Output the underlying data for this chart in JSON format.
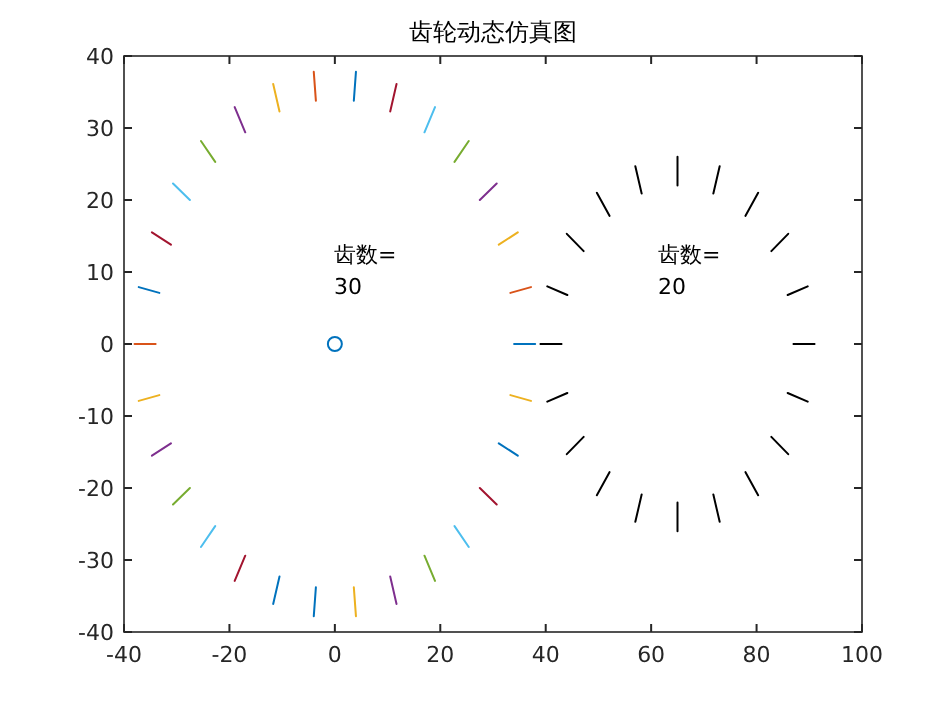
{
  "chart_data": {
    "type": "line",
    "title": "齿轮动态仿真图",
    "xlim": [
      -40,
      100
    ],
    "ylim": [
      -40,
      40
    ],
    "xticks": [
      -40,
      -20,
      0,
      20,
      40,
      60,
      80,
      100
    ],
    "yticks": [
      -40,
      -30,
      -20,
      -10,
      0,
      10,
      20,
      30,
      40
    ],
    "annotations": [
      "齿数=",
      "30",
      "齿数=",
      "20"
    ],
    "series": [
      {
        "color": "#0072bd",
        "x": [
          34,
          38,
          null,
          3.6,
          4,
          null,
          -33.3,
          -37.2,
          null,
          -10.5,
          -11.7,
          null,
          -3.6,
          -4,
          null,
          31.1,
          34.7
        ],
        "values": [
          0,
          0,
          null,
          33.8,
          37.8,
          null,
          7.1,
          7.9,
          null,
          -32.3,
          -36.1,
          null,
          -33.8,
          -37.8,
          null,
          -13.8,
          -15.5
        ]
      },
      {
        "color": "#d95319",
        "x": [
          33.3,
          37.2,
          null,
          -3.6,
          -4,
          null,
          -34,
          -38
        ],
        "values": [
          7.1,
          7.9,
          null,
          33.8,
          37.8,
          null,
          0,
          0
        ]
      },
      {
        "color": "#edb120",
        "x": [
          31.1,
          34.7,
          null,
          -10.5,
          -11.7,
          null,
          -33.3,
          -37.2,
          null,
          3.6,
          4,
          null,
          33.3,
          37.2
        ],
        "values": [
          13.8,
          15.5,
          null,
          32.3,
          36.1,
          null,
          -7.1,
          -7.9,
          null,
          -33.8,
          -37.8,
          null,
          -7.1,
          -7.9
        ]
      },
      {
        "color": "#7e2f8e",
        "x": [
          27.5,
          30.7,
          null,
          -17,
          -19,
          null,
          -31.1,
          -34.7,
          null,
          10.5,
          11.7
        ],
        "values": [
          20,
          22.3,
          null,
          29.4,
          32.9,
          null,
          -13.8,
          -15.5,
          null,
          -32.3,
          -36.1
        ]
      },
      {
        "color": "#77ac30",
        "x": [
          22.7,
          25.4,
          null,
          -22.7,
          -25.4,
          null,
          -27.5,
          -30.7,
          null,
          17,
          19
        ],
        "values": [
          25.3,
          28.2,
          null,
          25.3,
          28.2,
          null,
          -20,
          -22.3,
          null,
          -29.4,
          -32.9
        ]
      },
      {
        "color": "#4dbeee",
        "x": [
          17,
          19,
          null,
          -27.5,
          -30.7,
          null,
          -22.7,
          -25.4,
          null,
          22.7,
          25.4
        ],
        "values": [
          29.4,
          32.9,
          null,
          20,
          22.3,
          null,
          -25.3,
          -28.2,
          null,
          -25.3,
          -28.2
        ]
      },
      {
        "color": "#a2142f",
        "x": [
          10.5,
          11.7,
          null,
          -31.1,
          -34.7,
          null,
          -17,
          -19,
          null,
          27.5,
          30.7
        ],
        "values": [
          32.3,
          36.1,
          null,
          13.8,
          15.5,
          null,
          -29.4,
          -32.9,
          null,
          -20,
          -22.3
        ]
      },
      {
        "color": "#000000",
        "x": [
          87,
          91,
          null,
          85.9,
          89.7,
          null,
          82.8,
          86,
          null,
          77.9,
          80.3,
          null,
          71.8,
          73,
          null,
          65,
          65,
          null,
          58.2,
          57,
          null,
          52.1,
          49.7,
          null,
          47.2,
          44,
          null,
          44.1,
          40.3,
          null,
          43,
          39
        ],
        "values": [
          0,
          0,
          null,
          6.8,
          8,
          null,
          12.9,
          15.3,
          null,
          17.8,
          21,
          null,
          20.9,
          24.7,
          null,
          22,
          26,
          null,
          20.9,
          24.7,
          null,
          17.8,
          21,
          null,
          12.9,
          15.3,
          null,
          6.8,
          8,
          null,
          0,
          0
        ]
      },
      {
        "color": "#000000",
        "x": [
          44.1,
          40.3,
          null,
          47.2,
          44,
          null,
          52.1,
          49.7,
          null,
          58.2,
          57,
          null,
          65,
          65,
          null,
          71.8,
          73,
          null,
          77.9,
          80.3,
          null,
          82.8,
          86,
          null,
          85.9,
          89.7
        ],
        "values": [
          -6.8,
          -8,
          null,
          -12.9,
          -15.3,
          null,
          -17.8,
          -21,
          null,
          -20.9,
          -24.7,
          null,
          -22,
          -26,
          null,
          -20.9,
          -24.7,
          null,
          -17.8,
          -21,
          null,
          -12.9,
          -15.3,
          null,
          -6.8,
          -8
        ]
      },
      {
        "type": "scatter",
        "color": "#0072bd",
        "marker": "circle",
        "x": [
          0
        ],
        "values": [
          0
        ]
      }
    ]
  }
}
